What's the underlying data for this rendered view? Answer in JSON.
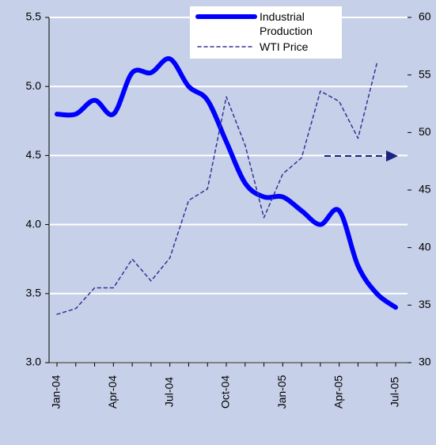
{
  "chart_data": {
    "type": "line",
    "categories": [
      "Jan-04",
      null,
      null,
      "Apr-04",
      null,
      null,
      "Jul-04",
      null,
      null,
      "Oct-04",
      null,
      null,
      "Jan-05",
      null,
      null,
      "Apr-05",
      null,
      null,
      "Jul-05"
    ],
    "series": [
      {
        "name": "Industrial Production",
        "color": "#0000ff",
        "values": [
          4.8,
          4.8,
          4.9,
          4.8,
          5.1,
          5.1,
          5.2,
          5.0,
          4.9,
          4.6,
          4.3,
          4.2,
          4.2,
          4.1,
          4.0,
          4.1,
          3.7,
          3.5,
          3.4
        ]
      },
      {
        "name": "WTI Price",
        "color": "#33339a",
        "axis": "y2",
        "values": [
          34.2,
          34.7,
          36.5,
          36.5,
          39.0,
          37.1,
          39.1,
          44.1,
          45.1,
          53.1,
          48.9,
          42.6,
          46.4,
          47.8,
          53.6,
          52.7,
          49.5,
          56.0,
          null
        ]
      }
    ],
    "ylim": [
      3,
      5.5
    ],
    "yticks": [
      {
        "value": 3,
        "label": "3.0"
      },
      3.5,
      {
        "value": 4,
        "label": "4.0"
      },
      4.5,
      {
        "value": 5,
        "label": "5.0"
      },
      5.5
    ],
    "y2lim": [
      30,
      60
    ],
    "y2ticks": [
      30,
      35,
      40,
      45,
      50,
      55,
      60
    ],
    "grid": true,
    "legend": "top"
  }
}
